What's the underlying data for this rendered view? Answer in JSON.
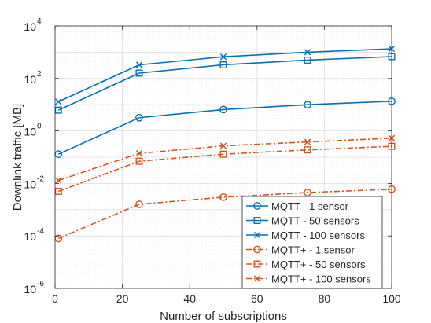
{
  "chart_data": {
    "type": "line",
    "xlabel": "Number of subscriptions",
    "ylabel": "Downlink traffic [MB]",
    "xlim": [
      0,
      100
    ],
    "ylim": [
      1e-06,
      10000.0
    ],
    "yscale": "log",
    "grid": true,
    "minor_grid": true,
    "legend_position": "bottom-right",
    "x_ticks": [
      "0",
      "20",
      "40",
      "60",
      "80",
      "100"
    ],
    "y_tick_exponents": [
      "-6",
      "-4",
      "-2",
      "0",
      "2",
      "4"
    ],
    "y_tick_base": "10",
    "x": [
      1,
      25,
      50,
      75,
      100
    ],
    "series": [
      {
        "name": "MQTT - 1 sensor",
        "color": "#0072BD",
        "linestyle": "solid",
        "marker": "circle",
        "values": [
          0.13,
          3.2,
          6.5,
          10,
          13.5
        ]
      },
      {
        "name": "MQTT - 50 sensors",
        "color": "#0072BD",
        "linestyle": "solid",
        "marker": "square",
        "values": [
          6.2,
          160,
          330,
          500,
          680
        ]
      },
      {
        "name": "MQTT - 100 sensors",
        "color": "#0072BD",
        "linestyle": "solid",
        "marker": "x",
        "values": [
          13,
          330,
          670,
          1000,
          1350
        ]
      },
      {
        "name": "MQTT+ - 1 sensor",
        "color": "#D95319",
        "linestyle": "dashdot",
        "marker": "circle",
        "values": [
          8e-05,
          0.0016,
          0.003,
          0.0045,
          0.006
        ]
      },
      {
        "name": "MQTT+ - 50 sensors",
        "color": "#D95319",
        "linestyle": "dashdot",
        "marker": "square",
        "values": [
          0.005,
          0.07,
          0.13,
          0.19,
          0.26
        ]
      },
      {
        "name": "MQTT+ - 100 sensors",
        "color": "#D95319",
        "linestyle": "dashdot",
        "marker": "x",
        "values": [
          0.013,
          0.14,
          0.27,
          0.38,
          0.53
        ]
      }
    ]
  }
}
